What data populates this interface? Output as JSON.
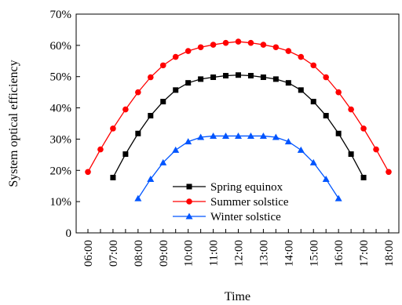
{
  "chart_data": {
    "type": "line",
    "title": "",
    "xlabel": "Time",
    "ylabel": "System optical efficiency",
    "ylim": [
      0,
      70
    ],
    "yticks": [
      "0",
      "10%",
      "20%",
      "30%",
      "40%",
      "50%",
      "60%",
      "70%"
    ],
    "x": [
      "06:00",
      "06:30",
      "07:00",
      "07:30",
      "08:00",
      "08:30",
      "09:00",
      "09:30",
      "10:00",
      "10:30",
      "11:00",
      "11:30",
      "12:00",
      "12:30",
      "13:00",
      "13:30",
      "14:00",
      "14:30",
      "15:00",
      "15:30",
      "16:00",
      "16:30",
      "17:00",
      "17:30",
      "18:00"
    ],
    "xticks": [
      "06:00",
      "07:00",
      "08:00",
      "09:00",
      "10:00",
      "11:00",
      "12:00",
      "13:00",
      "14:00",
      "15:00",
      "16:00",
      "17:00",
      "18:00"
    ],
    "grid": false,
    "legend_position": "center-bottom",
    "series": [
      {
        "name": "Spring equinox",
        "color": "#000000",
        "marker": "square",
        "values": [
          null,
          null,
          17.7,
          25.2,
          31.8,
          37.5,
          42.0,
          45.7,
          48.0,
          49.2,
          49.8,
          50.3,
          50.5,
          50.3,
          49.8,
          49.2,
          48.0,
          45.7,
          42.0,
          37.5,
          31.8,
          25.2,
          17.7,
          null,
          null
        ]
      },
      {
        "name": "Summer solstice",
        "color": "#ff0000",
        "marker": "circle",
        "values": [
          19.5,
          26.7,
          33.4,
          39.5,
          45.0,
          49.8,
          53.6,
          56.3,
          58.2,
          59.4,
          60.2,
          60.8,
          61.2,
          60.8,
          60.2,
          59.4,
          58.2,
          56.3,
          53.6,
          49.8,
          45.0,
          39.5,
          33.4,
          26.7,
          19.5
        ]
      },
      {
        "name": "Winter solstice",
        "color": "#0055ff",
        "marker": "triangle",
        "values": [
          null,
          null,
          null,
          null,
          11.0,
          17.2,
          22.5,
          26.5,
          29.2,
          30.6,
          31.0,
          31.0,
          31.0,
          31.0,
          31.0,
          30.6,
          29.2,
          26.5,
          22.5,
          17.2,
          11.0,
          null,
          null,
          null,
          null
        ]
      }
    ]
  }
}
